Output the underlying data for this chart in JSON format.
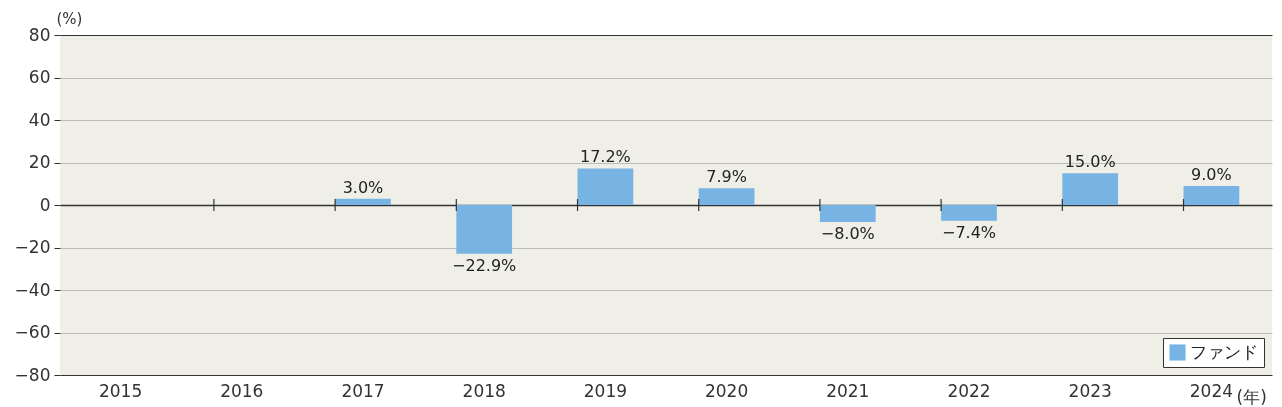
{
  "chart_data": {
    "type": "bar",
    "ylabel": "(%)",
    "xlabel": "(年)",
    "categories": [
      "2015",
      "2016",
      "2017",
      "2018",
      "2019",
      "2020",
      "2021",
      "2022",
      "2023",
      "2024"
    ],
    "series": [
      {
        "name": "ファンド",
        "color": "#78b4e3",
        "values": [
          null,
          null,
          3.0,
          -22.9,
          17.2,
          7.9,
          -8.0,
          -7.4,
          15.0,
          9.0
        ],
        "value_labels": [
          null,
          null,
          "3.0%",
          "−22.9%",
          "17.2%",
          "7.9%",
          "−8.0%",
          "−7.4%",
          "15.0%",
          "9.0%"
        ]
      }
    ],
    "ylim": [
      -80,
      80
    ],
    "yticks": [
      {
        "value": -80,
        "label": "−80"
      },
      {
        "value": -60,
        "label": "−60"
      },
      {
        "value": -40,
        "label": "−40"
      },
      {
        "value": -20,
        "label": "−20"
      },
      0,
      20,
      40,
      60,
      80
    ],
    "grid": "y",
    "legend": "bottom right"
  }
}
